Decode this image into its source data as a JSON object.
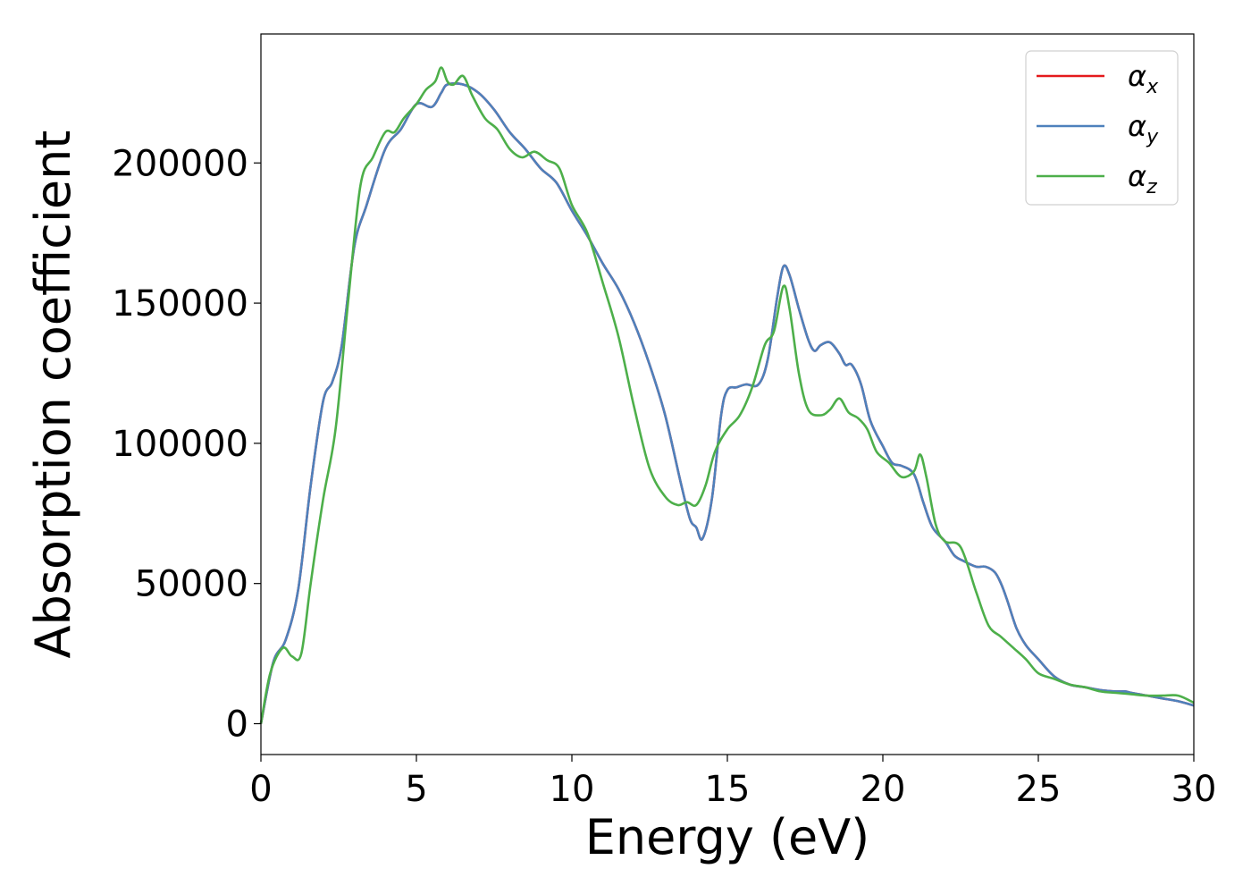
{
  "chart_data": {
    "type": "line",
    "title": "",
    "xlabel": "Energy (eV)",
    "ylabel": "Absorption coefficient",
    "xlim": [
      0,
      30
    ],
    "ylim": [
      -11000,
      246000
    ],
    "xticks": [
      0,
      5,
      10,
      15,
      20,
      25,
      30
    ],
    "yticks": [
      0,
      50000,
      100000,
      150000,
      200000
    ],
    "grid": false,
    "legend_position": "top-right",
    "series": [
      {
        "name": "αx",
        "legend_main": "α",
        "legend_sub": "x",
        "color": "#e41a1c",
        "x": [
          0,
          0.4,
          0.8,
          1.2,
          1.6,
          2.0,
          2.3,
          2.6,
          3.0,
          3.4,
          4.0,
          4.5,
          5.0,
          5.5,
          5.8,
          6.0,
          6.5,
          7.0,
          7.5,
          8.0,
          8.5,
          9.0,
          9.5,
          10.0,
          10.5,
          11.0,
          11.5,
          12.0,
          12.5,
          13.0,
          13.5,
          13.8,
          14.0,
          14.2,
          14.5,
          14.8,
          15.0,
          15.3,
          15.6,
          16.0,
          16.3,
          16.6,
          16.8,
          17.0,
          17.3,
          17.6,
          17.8,
          18.0,
          18.3,
          18.6,
          18.8,
          19.0,
          19.3,
          19.6,
          20.0,
          20.3,
          20.6,
          21.0,
          21.3,
          21.6,
          22.0,
          22.3,
          22.6,
          23.0,
          23.3,
          23.6,
          23.8,
          24.0,
          24.3,
          24.6,
          25.0,
          25.5,
          26.0,
          26.5,
          27.0,
          27.5,
          27.8,
          28.0,
          28.5,
          29.0,
          29.5,
          30.0
        ],
        "y": [
          0,
          22000,
          30000,
          48000,
          85000,
          115000,
          122000,
          135000,
          170000,
          185000,
          205000,
          212000,
          221000,
          220000,
          225000,
          228000,
          228000,
          225000,
          219000,
          211000,
          205000,
          198000,
          193000,
          183000,
          174000,
          164000,
          155000,
          143000,
          128000,
          110000,
          86000,
          73000,
          70000,
          66000,
          80000,
          110000,
          119000,
          120000,
          121000,
          121000,
          130000,
          152000,
          163000,
          160000,
          148000,
          137000,
          133000,
          135000,
          136000,
          132000,
          128000,
          128000,
          121000,
          108000,
          99000,
          93000,
          92000,
          89000,
          79000,
          70000,
          65000,
          60000,
          58000,
          56000,
          56000,
          54000,
          50000,
          44000,
          34000,
          28000,
          23000,
          17000,
          14000,
          13000,
          12000,
          11500,
          11500,
          11000,
          10000,
          9000,
          8000,
          6500
        ]
      },
      {
        "name": "αy",
        "legend_main": "α",
        "legend_sub": "y",
        "color": "#4e81bc",
        "x": [
          0,
          0.4,
          0.8,
          1.2,
          1.6,
          2.0,
          2.3,
          2.6,
          3.0,
          3.4,
          4.0,
          4.5,
          5.0,
          5.5,
          5.8,
          6.0,
          6.5,
          7.0,
          7.5,
          8.0,
          8.5,
          9.0,
          9.5,
          10.0,
          10.5,
          11.0,
          11.5,
          12.0,
          12.5,
          13.0,
          13.5,
          13.8,
          14.0,
          14.2,
          14.5,
          14.8,
          15.0,
          15.3,
          15.6,
          16.0,
          16.3,
          16.6,
          16.8,
          17.0,
          17.3,
          17.6,
          17.8,
          18.0,
          18.3,
          18.6,
          18.8,
          19.0,
          19.3,
          19.6,
          20.0,
          20.3,
          20.6,
          21.0,
          21.3,
          21.6,
          22.0,
          22.3,
          22.6,
          23.0,
          23.3,
          23.6,
          23.8,
          24.0,
          24.3,
          24.6,
          25.0,
          25.5,
          26.0,
          26.5,
          27.0,
          27.5,
          27.8,
          28.0,
          28.5,
          29.0,
          29.5,
          30.0
        ],
        "y": [
          0,
          22000,
          30000,
          48000,
          85000,
          115000,
          122000,
          135000,
          170000,
          185000,
          205000,
          212000,
          221000,
          220000,
          225000,
          228000,
          228000,
          225000,
          219000,
          211000,
          205000,
          198000,
          193000,
          183000,
          174000,
          164000,
          155000,
          143000,
          128000,
          110000,
          86000,
          73000,
          70000,
          66000,
          80000,
          110000,
          119000,
          120000,
          121000,
          121000,
          130000,
          152000,
          163000,
          160000,
          148000,
          137000,
          133000,
          135000,
          136000,
          132000,
          128000,
          128000,
          121000,
          108000,
          99000,
          93000,
          92000,
          89000,
          79000,
          70000,
          65000,
          60000,
          58000,
          56000,
          56000,
          54000,
          50000,
          44000,
          34000,
          28000,
          23000,
          17000,
          14000,
          13000,
          12000,
          11500,
          11500,
          11000,
          10000,
          9000,
          8000,
          6500
        ]
      },
      {
        "name": "αz",
        "legend_main": "α",
        "legend_sub": "z",
        "color": "#4daf4a",
        "x": [
          0,
          0.3,
          0.7,
          1.0,
          1.3,
          1.6,
          2.0,
          2.4,
          2.8,
          3.2,
          3.6,
          4.0,
          4.3,
          4.6,
          5.0,
          5.3,
          5.6,
          5.8,
          6.0,
          6.2,
          6.5,
          6.8,
          7.2,
          7.6,
          8.0,
          8.4,
          8.8,
          9.2,
          9.6,
          10.0,
          10.5,
          11.0,
          11.5,
          12.0,
          12.5,
          13.0,
          13.4,
          13.7,
          14.0,
          14.3,
          14.6,
          15.0,
          15.4,
          15.8,
          16.2,
          16.5,
          16.8,
          17.0,
          17.3,
          17.6,
          18.0,
          18.3,
          18.6,
          18.9,
          19.2,
          19.5,
          19.8,
          20.2,
          20.6,
          21.0,
          21.2,
          21.4,
          21.7,
          22.0,
          22.5,
          23.0,
          23.4,
          23.8,
          24.2,
          24.6,
          25.0,
          25.5,
          26.0,
          26.5,
          27.0,
          27.5,
          28.0,
          28.5,
          29.0,
          29.5,
          30.0
        ],
        "y": [
          0,
          18000,
          27000,
          24000,
          25000,
          50000,
          80000,
          105000,
          150000,
          192000,
          202000,
          211000,
          211000,
          216000,
          221000,
          226000,
          229000,
          234000,
          229000,
          228000,
          231000,
          224000,
          216000,
          212000,
          205000,
          202000,
          204000,
          201000,
          198000,
          185000,
          175000,
          157000,
          138000,
          113000,
          91000,
          81000,
          78000,
          79000,
          78000,
          85000,
          97000,
          105000,
          110000,
          120000,
          135000,
          140000,
          156000,
          148000,
          125000,
          112000,
          110000,
          112000,
          116000,
          111000,
          109000,
          105000,
          97000,
          93000,
          88000,
          90000,
          96000,
          88000,
          71000,
          65000,
          63000,
          47000,
          35000,
          31000,
          27000,
          23000,
          18000,
          16000,
          14000,
          13000,
          11500,
          11000,
          10500,
          10000,
          10000,
          10000,
          7500
        ]
      }
    ]
  }
}
